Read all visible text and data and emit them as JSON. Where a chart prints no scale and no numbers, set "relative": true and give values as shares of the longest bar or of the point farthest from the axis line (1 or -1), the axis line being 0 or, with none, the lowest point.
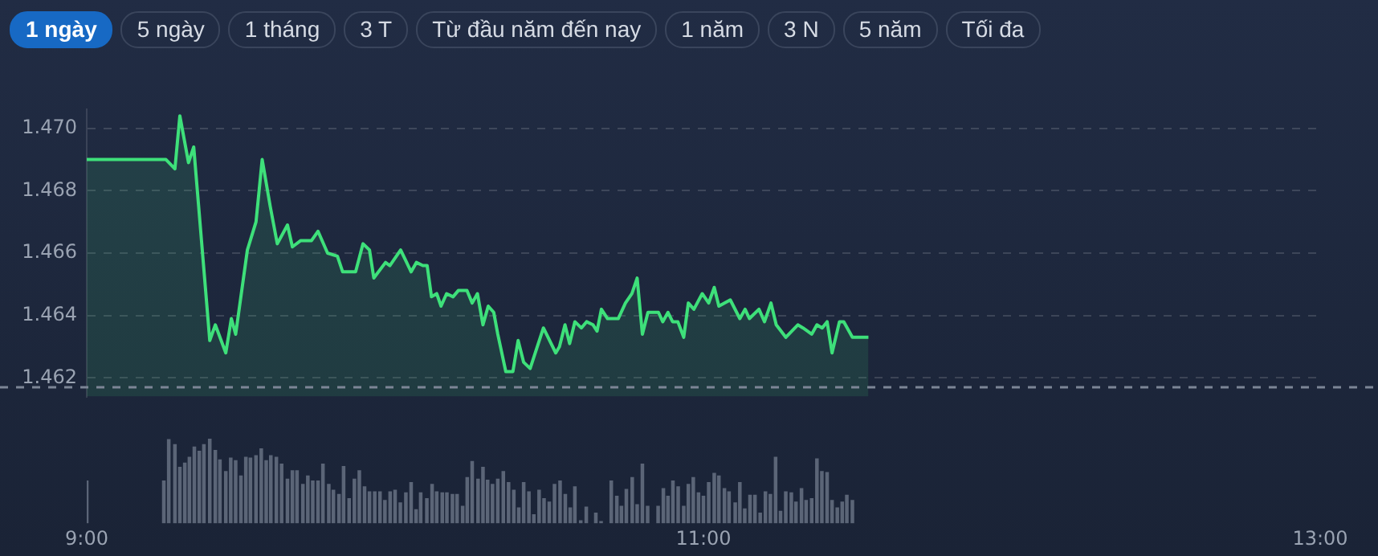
{
  "chart_data": [
    {
      "type": "other",
      "annotations": [
        "1 ngày",
        "5 ngày",
        "1 tháng",
        "3 T",
        "Từ đầu năm đến nay",
        "1 năm",
        "3 N",
        "5 năm",
        "Tối đa"
      ]
    },
    {
      "type": "area",
      "marker": "none",
      "legend": false,
      "grid": "y",
      "tick_labels": "y",
      "xlim": [
        9,
        13
      ],
      "ylim": [
        1.4614,
        1.4706
      ],
      "yticks": [
        {
          "value": 1.462,
          "label": "1.462"
        },
        {
          "value": 1.464,
          "label": "1.464"
        },
        {
          "value": 1.466,
          "label": "1.466"
        },
        {
          "value": 1.468,
          "label": "1.468"
        },
        {
          "value": 1.47,
          "label": "1.470"
        }
      ],
      "ref_lines": [
        {
          "axis": "y",
          "value": 1.4617,
          "label": null,
          "color": "#7c8596",
          "line_style": "dashed"
        }
      ],
      "series": [
        {
          "color": "#3ee07a",
          "x": [
            9.0,
            9.257,
            9.286,
            9.302,
            9.33,
            9.347,
            9.399,
            9.417,
            9.451,
            9.469,
            9.483,
            9.521,
            9.549,
            9.569,
            9.595,
            9.618,
            9.651,
            9.667,
            9.694,
            9.729,
            9.75,
            9.781,
            9.813,
            9.83,
            9.872,
            9.896,
            9.917,
            9.931,
            9.969,
            9.983,
            10.018,
            10.052,
            10.069,
            10.09,
            10.104,
            10.118,
            10.135,
            10.149,
            10.167,
            10.188,
            10.205,
            10.233,
            10.25,
            10.267,
            10.285,
            10.302,
            10.32,
            10.333,
            10.359,
            10.382,
            10.399,
            10.417,
            10.438,
            10.481,
            10.521,
            10.533,
            10.551,
            10.566,
            10.583,
            10.604,
            10.621,
            10.642,
            10.655,
            10.669,
            10.689,
            10.724,
            10.747,
            10.768,
            10.785,
            10.802,
            10.82,
            10.854,
            10.868,
            10.885,
            10.9,
            10.917,
            10.936,
            10.951,
            10.969,
            10.996,
            11.017,
            11.035,
            11.05,
            11.087,
            11.118,
            11.135,
            11.149,
            11.18,
            11.198,
            11.219,
            11.236,
            11.267,
            11.306,
            11.323,
            11.351,
            11.368,
            11.385,
            11.401,
            11.417,
            11.441,
            11.455,
            11.483,
            11.535
          ],
          "values": [
            1.469,
            1.469,
            1.4687,
            1.4704,
            1.4689,
            1.4694,
            1.4632,
            1.4637,
            1.4628,
            1.4639,
            1.4634,
            1.4661,
            1.467,
            1.469,
            1.4675,
            1.4663,
            1.4669,
            1.4662,
            1.4664,
            1.4664,
            1.4667,
            1.466,
            1.4659,
            1.4654,
            1.4654,
            1.4663,
            1.4661,
            1.4652,
            1.4657,
            1.4656,
            1.4661,
            1.4654,
            1.4657,
            1.4656,
            1.4656,
            1.4646,
            1.4647,
            1.4643,
            1.4647,
            1.4646,
            1.4648,
            1.4648,
            1.4644,
            1.4647,
            1.4637,
            1.4643,
            1.4641,
            1.4634,
            1.4622,
            1.4622,
            1.4632,
            1.4625,
            1.4623,
            1.4636,
            1.4628,
            1.463,
            1.4637,
            1.4631,
            1.4638,
            1.4636,
            1.4638,
            1.4637,
            1.4635,
            1.4642,
            1.4639,
            1.4639,
            1.4644,
            1.4647,
            1.4652,
            1.4634,
            1.4641,
            1.4641,
            1.4638,
            1.4641,
            1.4638,
            1.4638,
            1.4633,
            1.4644,
            1.4642,
            1.4647,
            1.4644,
            1.4649,
            1.4643,
            1.4645,
            1.4639,
            1.4642,
            1.4639,
            1.4642,
            1.4638,
            1.4644,
            1.4637,
            1.4633,
            1.4637,
            1.4636,
            1.4634,
            1.4637,
            1.4636,
            1.4638,
            1.4628,
            1.4638,
            1.4638,
            1.4633,
            1.4633
          ]
        }
      ]
    },
    {
      "type": "bar",
      "relative": true,
      "legend": false,
      "tick_labels": "x",
      "grid": false,
      "xlim": [
        9,
        13
      ],
      "xticks": [
        {
          "value": 9,
          "label": "9:00"
        },
        {
          "value": 11,
          "label": "11:00"
        },
        {
          "value": 13,
          "label": "13:00"
        }
      ],
      "series": [
        {
          "color": "#5b6577",
          "x": [
            9.0,
            9.25,
            9.266,
            9.286,
            9.302,
            9.318,
            9.333,
            9.349,
            9.365,
            9.38,
            9.399,
            9.417,
            9.432,
            9.451,
            9.467,
            9.483,
            9.5,
            9.516,
            9.531,
            9.549,
            9.566,
            9.582,
            9.597,
            9.615,
            9.632,
            9.651,
            9.667,
            9.682,
            9.701,
            9.717,
            9.733,
            9.75,
            9.766,
            9.785,
            9.8,
            9.818,
            9.833,
            9.851,
            9.868,
            9.884,
            9.901,
            9.917,
            9.934,
            9.951,
            9.967,
            9.984,
            10.0,
            10.017,
            10.035,
            10.052,
            10.068,
            10.083,
            10.103,
            10.12,
            10.135,
            10.153,
            10.168,
            10.186,
            10.201,
            10.219,
            10.234,
            10.25,
            10.269,
            10.285,
            10.3,
            10.316,
            10.333,
            10.351,
            10.368,
            10.385,
            10.401,
            10.417,
            10.434,
            10.45,
            10.467,
            10.483,
            10.5,
            10.517,
            10.535,
            10.552,
            10.568,
            10.583,
            10.602,
            10.62,
            10.651,
            10.668,
            10.701,
            10.719,
            10.734,
            10.75,
            10.769,
            10.785,
            10.802,
            10.819,
            10.853,
            10.87,
            10.885,
            10.901,
            10.918,
            10.936,
            10.951,
            10.967,
            10.984,
            11.0,
            11.017,
            11.035,
            11.05,
            11.068,
            11.083,
            11.103,
            11.118,
            11.134,
            11.151,
            11.167,
            11.184,
            11.201,
            11.217,
            11.234,
            11.25,
            11.267,
            11.285,
            11.3,
            11.318,
            11.333,
            11.351,
            11.368,
            11.384,
            11.401,
            11.417,
            11.434,
            11.45,
            11.465,
            11.483
          ],
          "values": [
            0.5,
            0.5,
            0.99,
            0.93,
            0.66,
            0.71,
            0.78,
            0.9,
            0.85,
            0.93,
            1,
            0.86,
            0.75,
            0.61,
            0.77,
            0.74,
            0.56,
            0.78,
            0.77,
            0.8,
            0.88,
            0.74,
            0.8,
            0.78,
            0.7,
            0.52,
            0.62,
            0.62,
            0.46,
            0.56,
            0.5,
            0.5,
            0.7,
            0.46,
            0.39,
            0.34,
            0.67,
            0.29,
            0.52,
            0.62,
            0.43,
            0.37,
            0.37,
            0.37,
            0.27,
            0.37,
            0.39,
            0.24,
            0.36,
            0.48,
            0.16,
            0.36,
            0.29,
            0.46,
            0.37,
            0.36,
            0.36,
            0.34,
            0.34,
            0.2,
            0.54,
            0.73,
            0.52,
            0.66,
            0.51,
            0.46,
            0.52,
            0.61,
            0.48,
            0.39,
            0.18,
            0.48,
            0.37,
            0.1,
            0.39,
            0.29,
            0.25,
            0.46,
            0.5,
            0.34,
            0.18,
            0.43,
            0.03,
            0.19,
            0.12,
            0.02,
            0.5,
            0.32,
            0.2,
            0.4,
            0.54,
            0.22,
            0.7,
            0.2,
            0.2,
            0.41,
            0.32,
            0.5,
            0.43,
            0.2,
            0.46,
            0.54,
            0.36,
            0.32,
            0.48,
            0.59,
            0.56,
            0.41,
            0.37,
            0.24,
            0.48,
            0.17,
            0.33,
            0.33,
            0.12,
            0.37,
            0.34,
            0.78,
            0.14,
            0.37,
            0.36,
            0.25,
            0.41,
            0.27,
            0.29,
            0.76,
            0.61,
            0.6,
            0.27,
            0.18,
            0.25,
            0.33,
            0.27
          ]
        }
      ]
    }
  ]
}
